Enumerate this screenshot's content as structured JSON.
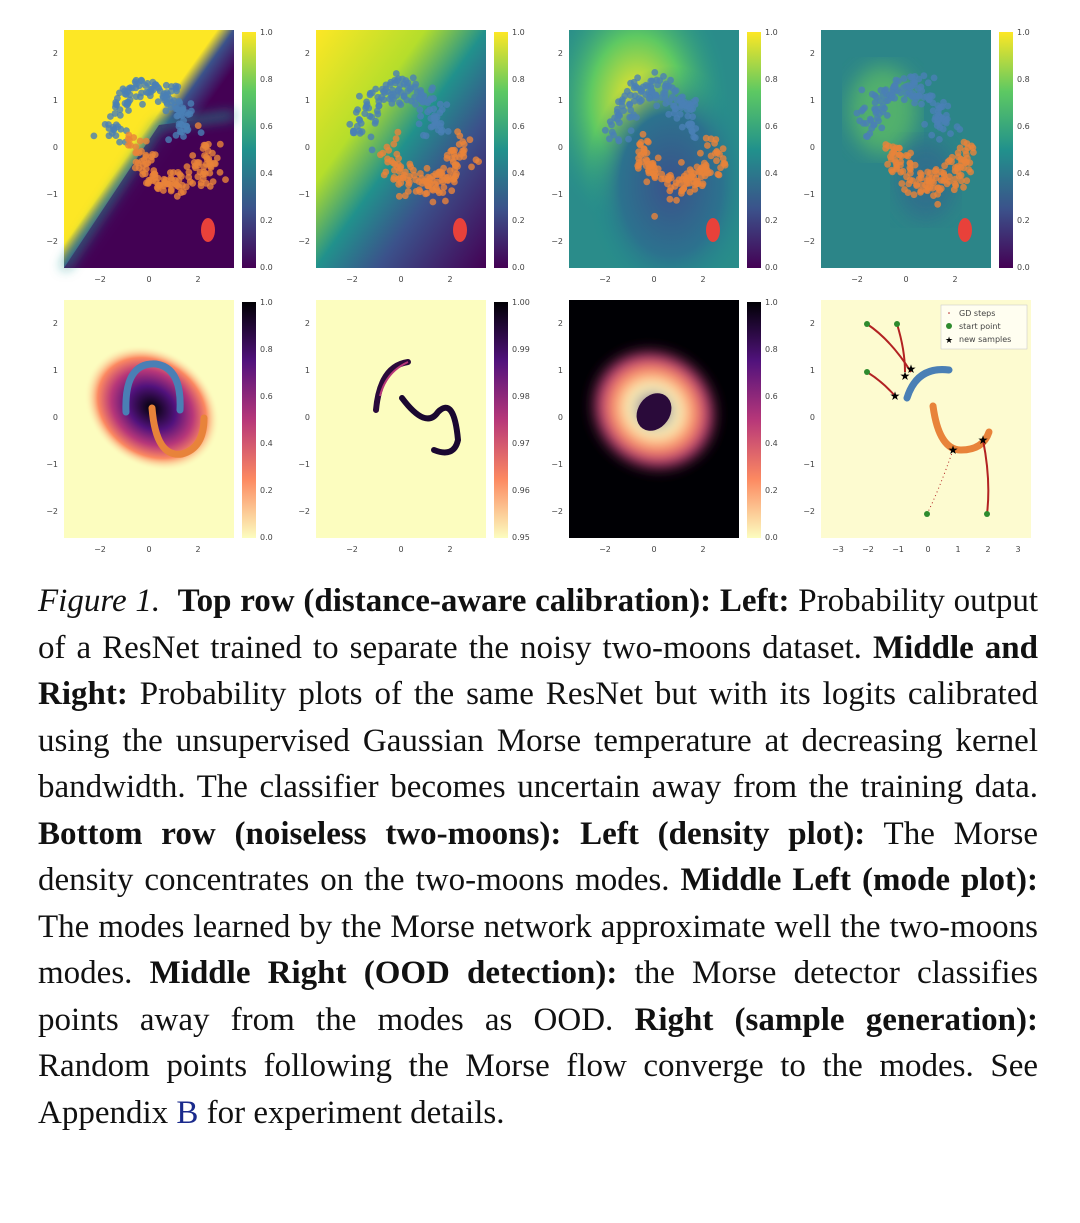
{
  "figure": {
    "top_row_colorbar_ticks": [
      "1.0",
      "0.8",
      "0.6",
      "0.4",
      "0.2",
      "0.0"
    ],
    "bottom_panel2_colorbar_ticks": [
      "1.00",
      "0.99",
      "0.98",
      "0.97",
      "0.96",
      "0.95"
    ],
    "standard_x_ticks": [
      "−2",
      "0",
      "2"
    ],
    "standard_y_ticks": [
      "2",
      "1",
      "0",
      "−1",
      "−2"
    ],
    "panel8_x_ticks": [
      "−3",
      "−2",
      "−1",
      "0",
      "1",
      "2",
      "3"
    ],
    "legend": {
      "gd_steps": "GD steps",
      "start_point": "start point",
      "new_samples": "new samples"
    },
    "colors": {
      "blue_moon": "#4a7fb5",
      "orange_moon": "#e8833a",
      "red_cluster": "#e8413a",
      "start_point": "#2e8b2e"
    }
  },
  "caption": {
    "fig_label": "Figure 1.",
    "s1_bold": "Top row (distance-aware calibration):",
    "s2_bold": "Left:",
    "s2_text": "Probability output of a ResNet trained to separate the noisy two-moons dataset.",
    "s3_bold": "Middle and Right:",
    "s3_text": "Probability plots of the same ResNet but with its logits calibrated using the unsupervised Gaussian Morse temperature at decreasing kernel bandwidth. The classifier becomes uncertain away from the training data.",
    "s4_bold": "Bottom row (noiseless two-moons):",
    "s5_bold": "Left (density plot):",
    "s5_text": "The Morse density concentrates on the two-moons modes.",
    "s6_bold": "Middle Left (mode plot):",
    "s6_text": "The modes learned by the Morse network approximate well the two-moons modes.",
    "s7_bold": "Middle Right (OOD detection):",
    "s7_text": "the Morse detector classifies points away from the modes as OOD.",
    "s8_bold": "Right (sample generation):",
    "s8_text": "Random points following the Morse flow converge to the modes. See Appendix",
    "s8_ref": "B",
    "s8_end": "for experiment details."
  }
}
